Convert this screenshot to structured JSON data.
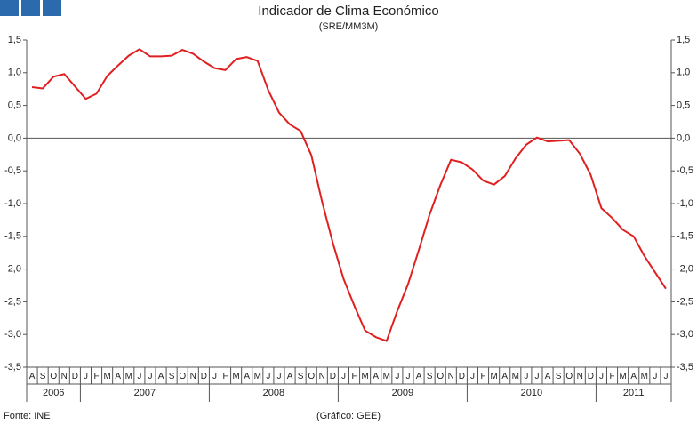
{
  "chart_data": {
    "type": "line",
    "title": "Indicador de Clima Económico",
    "subtitle": "(SRE/MM3M)",
    "source": "Fonte: INE",
    "note": "(Gráfico: GEE)",
    "categories": [
      "A",
      "S",
      "O",
      "N",
      "D",
      "J",
      "F",
      "M",
      "A",
      "M",
      "J",
      "J",
      "A",
      "S",
      "O",
      "N",
      "D",
      "J",
      "F",
      "M",
      "A",
      "M",
      "J",
      "J",
      "A",
      "S",
      "O",
      "N",
      "D",
      "J",
      "F",
      "M",
      "A",
      "M",
      "J",
      "J",
      "A",
      "S",
      "O",
      "N",
      "D",
      "J",
      "F",
      "M",
      "A",
      "M",
      "J",
      "J",
      "A",
      "S",
      "O",
      "N",
      "D",
      "J",
      "F",
      "M",
      "A",
      "M",
      "J",
      "J"
    ],
    "years": [
      "2006",
      "2007",
      "2008",
      "2009",
      "2010",
      "2011"
    ],
    "values": [
      0.78,
      0.76,
      0.94,
      0.98,
      0.79,
      0.6,
      0.68,
      0.95,
      1.11,
      1.26,
      1.36,
      1.25,
      1.25,
      1.26,
      1.35,
      1.29,
      1.17,
      1.07,
      1.04,
      1.21,
      1.24,
      1.18,
      0.73,
      0.39,
      0.21,
      0.11,
      -0.26,
      -0.97,
      -1.6,
      -2.15,
      -2.56,
      -2.94,
      -3.04,
      -3.1,
      -2.64,
      -2.23,
      -1.71,
      -1.17,
      -0.72,
      -0.33,
      -0.37,
      -0.48,
      -0.65,
      -0.71,
      -0.58,
      -0.31,
      -0.1,
      0.01,
      -0.05,
      -0.04,
      -0.03,
      -0.24,
      -0.56,
      -1.07,
      -1.22,
      -1.4,
      -1.5,
      -1.8,
      -2.05,
      -2.3
    ],
    "color": "#e02020",
    "ylim": [
      -3.5,
      1.5
    ],
    "yticks": [
      {
        "value": -3.5,
        "label": "-3,5"
      },
      {
        "value": -3,
        "label": "-3,0"
      },
      {
        "value": -2.5,
        "label": "-2,5"
      },
      {
        "value": -2,
        "label": "-2,0"
      },
      {
        "value": -1.5,
        "label": "-1,5"
      },
      {
        "value": -1,
        "label": "-1,0"
      },
      {
        "value": -0.5,
        "label": "-0,5"
      },
      {
        "value": 0,
        "label": "0,0"
      },
      {
        "value": 0.5,
        "label": "0,5"
      },
      {
        "value": 1,
        "label": "1,0"
      },
      {
        "value": 1.5,
        "label": "1,5"
      }
    ]
  }
}
